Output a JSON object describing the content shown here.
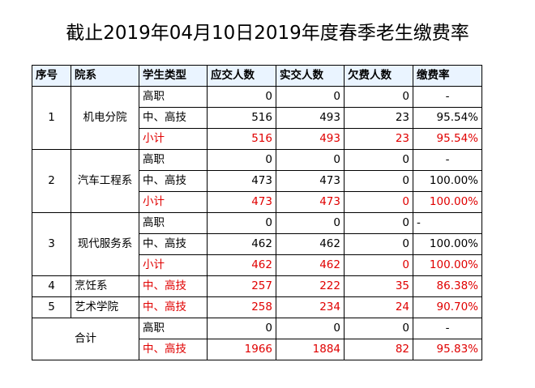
{
  "title": "截止2019年04月10日2019年度春季老生缴费率",
  "headers": [
    "序号",
    "院系",
    "学生类型",
    "应交人数",
    "实交人数",
    "欠费人数",
    "缴费率"
  ],
  "groups": [
    {
      "no": "1",
      "dept": "机电分院",
      "rows": [
        {
          "type": "高职",
          "due": "0",
          "paid": "0",
          "owe": "0",
          "rate": "-",
          "red": false
        },
        {
          "type": "中、高技",
          "due": "516",
          "paid": "493",
          "owe": "23",
          "rate": "95.54%",
          "red": false
        },
        {
          "type": "小计",
          "due": "516",
          "paid": "493",
          "owe": "23",
          "rate": "95.54%",
          "red": true
        }
      ]
    },
    {
      "no": "2",
      "dept": "汽车工程系",
      "rows": [
        {
          "type": "高职",
          "due": "0",
          "paid": "0",
          "owe": "0",
          "rate": "-",
          "red": false
        },
        {
          "type": "中、高技",
          "due": "473",
          "paid": "473",
          "owe": "0",
          "rate": "100.00%",
          "red": false
        },
        {
          "type": "小计",
          "due": "473",
          "paid": "473",
          "owe": "0",
          "rate": "100.00%",
          "red": true
        }
      ]
    },
    {
      "no": "3",
      "dept": "现代服务系",
      "rows": [
        {
          "type": "高职",
          "due": "0",
          "paid": "0",
          "owe": "0",
          "rate": "-",
          "red": false
        },
        {
          "type": "中、高技",
          "due": "462",
          "paid": "462",
          "owe": "0",
          "rate": "100.00%",
          "red": false
        },
        {
          "type": "小计",
          "due": "462",
          "paid": "462",
          "owe": "0",
          "rate": "100.00%",
          "red": true
        }
      ]
    }
  ],
  "singles": [
    {
      "no": "4",
      "dept": "烹饪系",
      "type": "中、高技",
      "due": "257",
      "paid": "222",
      "owe": "35",
      "rate": "86.38%"
    },
    {
      "no": "5",
      "dept": "艺术学院",
      "type": "中、高技",
      "due": "258",
      "paid": "234",
      "owe": "24",
      "rate": "90.70%"
    }
  ],
  "total": {
    "label": "合计",
    "rows": [
      {
        "type": "高职",
        "due": "0",
        "paid": "0",
        "owe": "0",
        "rate": "-"
      },
      {
        "type": "中、高技",
        "due": "1966",
        "paid": "1884",
        "owe": "82",
        "rate": "95.83%"
      }
    ]
  },
  "colors": {
    "red": "#e00000",
    "header_bg": "#eaf4ff"
  }
}
